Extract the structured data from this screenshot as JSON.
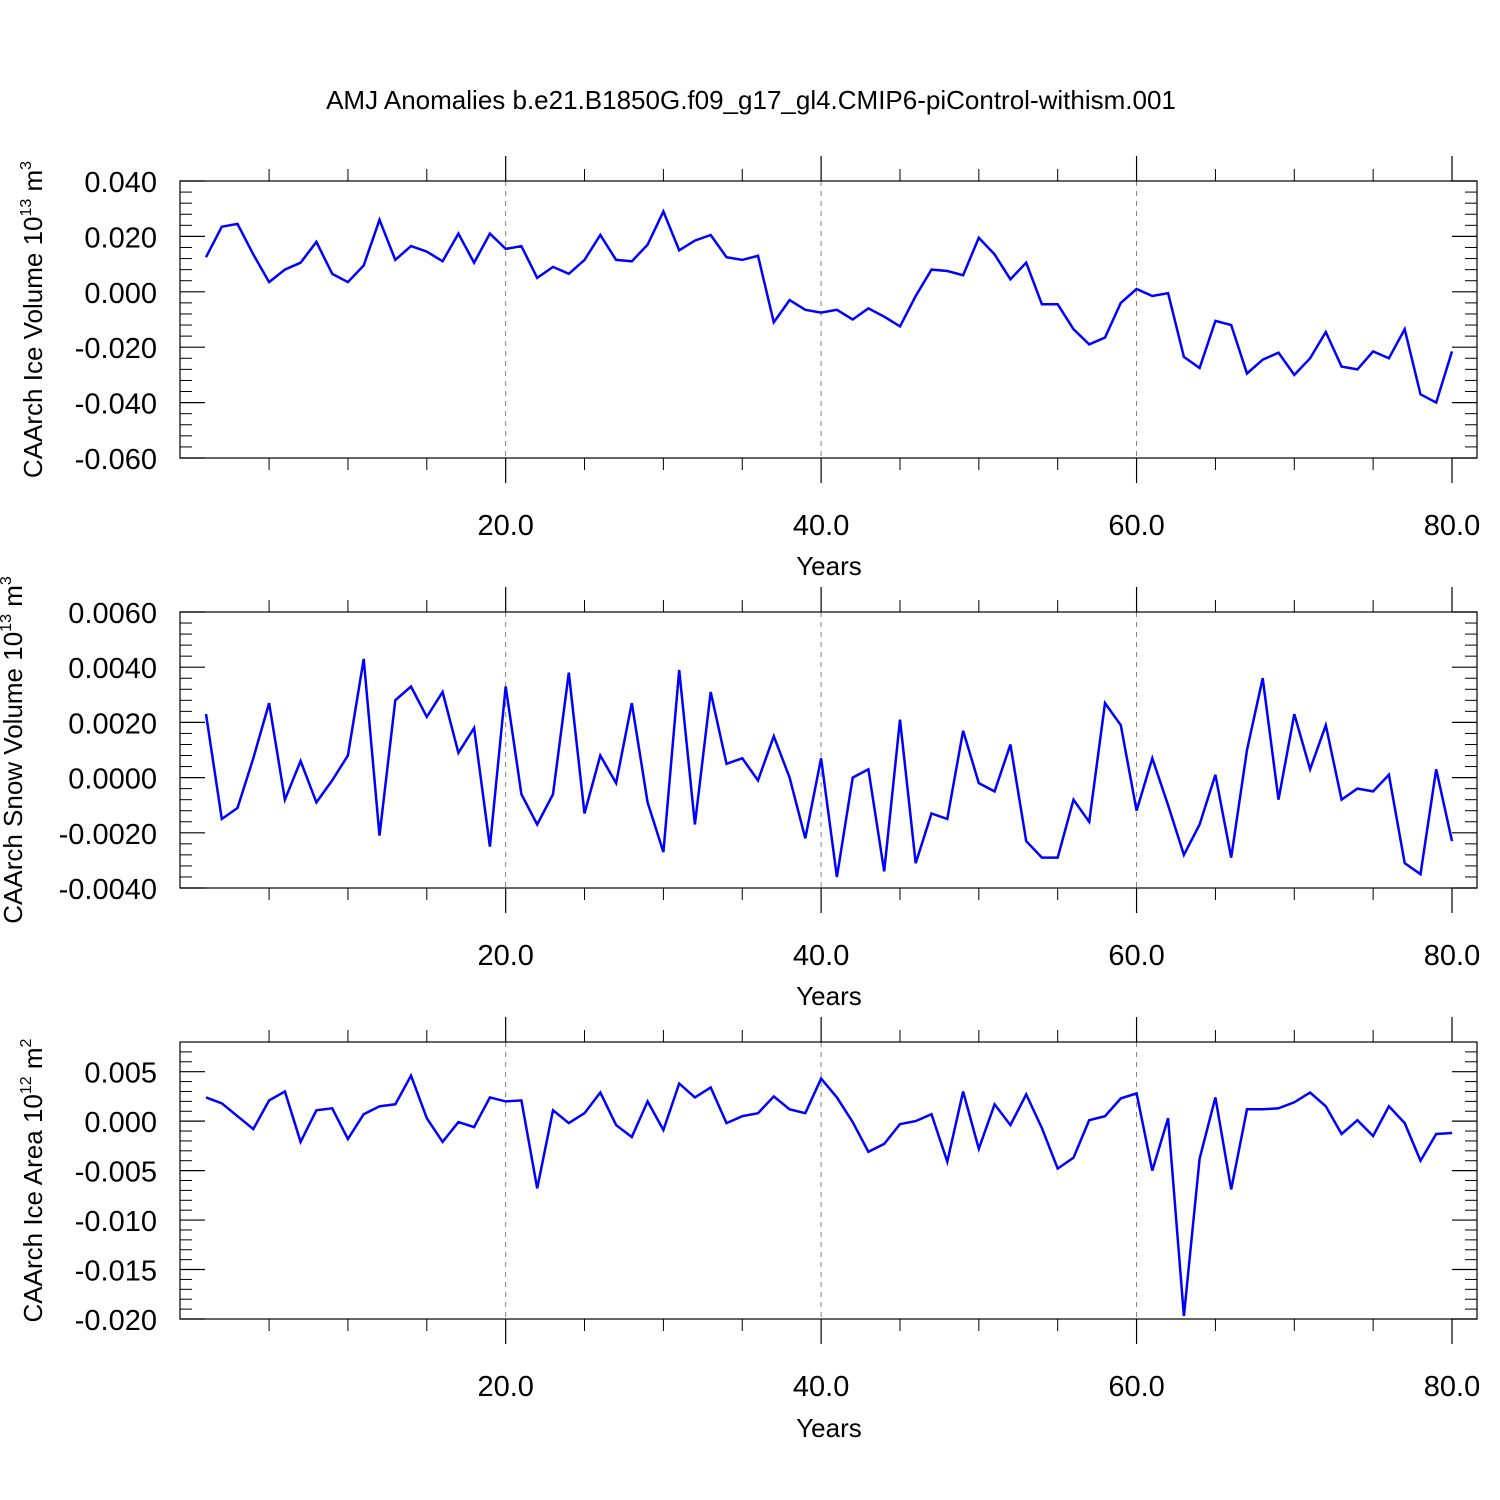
{
  "figure_title": "AMJ Anomalies b.e21.B1850G.f09_g17_gl4.CMIP6-piControl-withism.001",
  "colors": {
    "line": "#0000ff",
    "axis": "#000000",
    "grid": "#808080",
    "background": "#ffffff"
  },
  "chart_data": [
    {
      "type": "line",
      "xlabel": "Years",
      "ylabel": {
        "base": "CAArch Ice Volume 10",
        "exponent": "13",
        "unit": " m",
        "unit_exponent": "3"
      },
      "xlim": [
        1,
        80
      ],
      "ylim": [
        -0.06,
        0.04
      ],
      "x_ticks": [
        20,
        40,
        60,
        80
      ],
      "x_tick_labels": [
        "20.0",
        "40.0",
        "60.0",
        "80.0"
      ],
      "y_ticks": [
        0.04,
        0.02,
        0.0,
        -0.02,
        -0.04,
        -0.06
      ],
      "y_tick_labels": [
        "0.040",
        "0.020",
        "0.000",
        "-0.020",
        "-0.040",
        "-0.060"
      ],
      "vertical_grid": true,
      "series": [
        {
          "x": [
            1,
            2,
            3,
            4,
            5,
            6,
            7,
            8,
            9,
            10,
            11,
            12,
            13,
            14,
            15,
            16,
            17,
            18,
            19,
            20,
            21,
            22,
            23,
            24,
            25,
            26,
            27,
            28,
            29,
            30,
            31,
            32,
            33,
            34,
            35,
            36,
            37,
            38,
            39,
            40,
            41,
            42,
            43,
            44,
            45,
            46,
            47,
            48,
            49,
            50,
            51,
            52,
            53,
            54,
            55,
            56,
            57,
            58,
            59,
            60,
            61,
            62,
            63,
            64,
            65,
            66,
            67,
            68,
            69,
            70,
            71,
            72,
            73,
            74,
            75,
            76,
            77,
            78,
            79,
            80
          ],
          "values": [
            0.0125,
            0.0235,
            0.0245,
            0.0135,
            0.0035,
            0.008,
            0.0105,
            0.018,
            0.0065,
            0.0035,
            0.0095,
            0.026,
            0.0115,
            0.0165,
            0.0145,
            0.011,
            0.021,
            0.0105,
            0.021,
            0.0155,
            0.0165,
            0.005,
            0.009,
            0.0065,
            0.0115,
            0.0205,
            0.0115,
            0.011,
            0.017,
            0.029,
            0.015,
            0.0185,
            0.0205,
            0.0125,
            0.0115,
            0.013,
            -0.011,
            -0.003,
            -0.0065,
            -0.0075,
            -0.0065,
            -0.01,
            -0.006,
            -0.009,
            -0.0125,
            -0.0015,
            0.008,
            0.0075,
            0.006,
            0.0195,
            0.0135,
            0.0045,
            0.0105,
            -0.0045,
            -0.0045,
            -0.0135,
            -0.019,
            -0.0165,
            -0.004,
            0.001,
            -0.0015,
            -0.0005,
            -0.0235,
            -0.0275,
            -0.0105,
            -0.012,
            -0.0295,
            -0.0245,
            -0.022,
            -0.03,
            -0.024,
            -0.0145,
            -0.027,
            -0.028,
            -0.0215,
            -0.024,
            -0.0135,
            -0.037,
            -0.04,
            -0.0215
          ]
        }
      ]
    },
    {
      "type": "line",
      "xlabel": "Years",
      "ylabel": {
        "base": "CAArch Snow Volume 10",
        "exponent": "13",
        "unit": " m",
        "unit_exponent": "3"
      },
      "xlim": [
        1,
        80
      ],
      "ylim": [
        -0.004,
        0.006
      ],
      "x_ticks": [
        20,
        40,
        60,
        80
      ],
      "x_tick_labels": [
        "20.0",
        "40.0",
        "60.0",
        "80.0"
      ],
      "y_ticks": [
        0.006,
        0.004,
        0.002,
        0.0,
        -0.002,
        -0.004
      ],
      "y_tick_labels": [
        "0.0060",
        "0.0040",
        "0.0020",
        "0.0000",
        "-0.0020",
        "-0.0040"
      ],
      "vertical_grid": true,
      "series": [
        {
          "x": [
            1,
            2,
            3,
            4,
            5,
            6,
            7,
            8,
            9,
            10,
            11,
            12,
            13,
            14,
            15,
            16,
            17,
            18,
            19,
            20,
            21,
            22,
            23,
            24,
            25,
            26,
            27,
            28,
            29,
            30,
            31,
            32,
            33,
            34,
            35,
            36,
            37,
            38,
            39,
            40,
            41,
            42,
            43,
            44,
            45,
            46,
            47,
            48,
            49,
            50,
            51,
            52,
            53,
            54,
            55,
            56,
            57,
            58,
            59,
            60,
            61,
            62,
            63,
            64,
            65,
            66,
            67,
            68,
            69,
            70,
            71,
            72,
            73,
            74,
            75,
            76,
            77,
            78,
            79,
            80
          ],
          "values": [
            0.0023,
            -0.0015,
            -0.0011,
            0.0007,
            0.0027,
            -0.0008,
            0.0006,
            -0.0009,
            -0.0001,
            0.0008,
            0.0043,
            -0.0021,
            0.0028,
            0.0033,
            0.0022,
            0.0031,
            0.0009,
            0.0018,
            -0.0025,
            0.0033,
            -0.0006,
            -0.0017,
            -0.0006,
            0.0038,
            -0.0013,
            0.0008,
            -0.0002,
            0.0027,
            -0.0009,
            -0.0027,
            0.0039,
            -0.0017,
            0.0031,
            0.0005,
            0.0007,
            -0.0001,
            0.0015,
            0.0,
            -0.0022,
            0.0007,
            -0.0036,
            0.0,
            0.0003,
            -0.0034,
            0.0021,
            -0.0031,
            -0.0013,
            -0.0015,
            0.0017,
            -0.0002,
            -0.0005,
            0.0012,
            -0.0023,
            -0.0029,
            -0.0029,
            -0.0008,
            -0.0016,
            0.0027,
            0.0019,
            -0.0012,
            0.0007,
            -0.001,
            -0.0028,
            -0.0017,
            0.0001,
            -0.0029,
            0.001,
            0.0036,
            -0.0008,
            0.0023,
            0.0003,
            0.0019,
            -0.0008,
            -0.0004,
            -0.0005,
            0.0001,
            -0.0031,
            -0.0035,
            0.0003,
            -0.0023
          ]
        }
      ]
    },
    {
      "type": "line",
      "xlabel": "Years",
      "ylabel": {
        "base": "CAArch Ice Area 10",
        "exponent": "12",
        "unit": " m",
        "unit_exponent": "2"
      },
      "xlim": [
        1,
        80
      ],
      "ylim": [
        -0.02,
        0.008
      ],
      "x_ticks": [
        20,
        40,
        60,
        80
      ],
      "x_tick_labels": [
        "20.0",
        "40.0",
        "60.0",
        "80.0"
      ],
      "y_ticks": [
        0.005,
        0.0,
        -0.005,
        -0.01,
        -0.015,
        -0.02
      ],
      "y_tick_labels": [
        "0.005",
        "0.000",
        "-0.005",
        "-0.010",
        "-0.015",
        "-0.020"
      ],
      "vertical_grid": true,
      "series": [
        {
          "x": [
            1,
            2,
            3,
            4,
            5,
            6,
            7,
            8,
            9,
            10,
            11,
            12,
            13,
            14,
            15,
            16,
            17,
            18,
            19,
            20,
            21,
            22,
            23,
            24,
            25,
            26,
            27,
            28,
            29,
            30,
            31,
            32,
            33,
            34,
            35,
            36,
            37,
            38,
            39,
            40,
            41,
            42,
            43,
            44,
            45,
            46,
            47,
            48,
            49,
            50,
            51,
            52,
            53,
            54,
            55,
            56,
            57,
            58,
            59,
            60,
            61,
            62,
            63,
            64,
            65,
            66,
            67,
            68,
            69,
            70,
            71,
            72,
            73,
            74,
            75,
            76,
            77,
            78,
            79,
            80
          ],
          "values": [
            0.0024,
            0.0018,
            0.0005,
            -0.0008,
            0.0021,
            0.003,
            -0.0021,
            0.0011,
            0.0013,
            -0.0018,
            0.0007,
            0.0015,
            0.0017,
            0.0046,
            0.0003,
            -0.0021,
            -0.0001,
            -0.0006,
            0.0024,
            0.002,
            0.0021,
            -0.0068,
            0.0011,
            -0.0002,
            0.0008,
            0.0029,
            -0.0004,
            -0.0016,
            0.002,
            -0.0009,
            0.0038,
            0.0024,
            0.0034,
            -0.0002,
            0.0005,
            0.0008,
            0.0025,
            0.0012,
            0.0008,
            0.0043,
            0.0024,
            -0.0001,
            -0.0031,
            -0.0023,
            -0.0003,
            0.0,
            0.0007,
            -0.0041,
            0.003,
            -0.0028,
            0.0017,
            -0.0004,
            0.0027,
            -0.0007,
            -0.0048,
            -0.0037,
            0.0001,
            0.0005,
            0.0023,
            0.0028,
            -0.005,
            0.0003,
            -0.0197,
            -0.0038,
            0.0024,
            -0.0069,
            0.0012,
            0.0012,
            0.0013,
            0.0019,
            0.0029,
            0.0015,
            -0.0013,
            0.0001,
            -0.0015,
            0.0015,
            -0.0002,
            -0.004,
            -0.0013,
            -0.0012
          ]
        }
      ]
    }
  ]
}
